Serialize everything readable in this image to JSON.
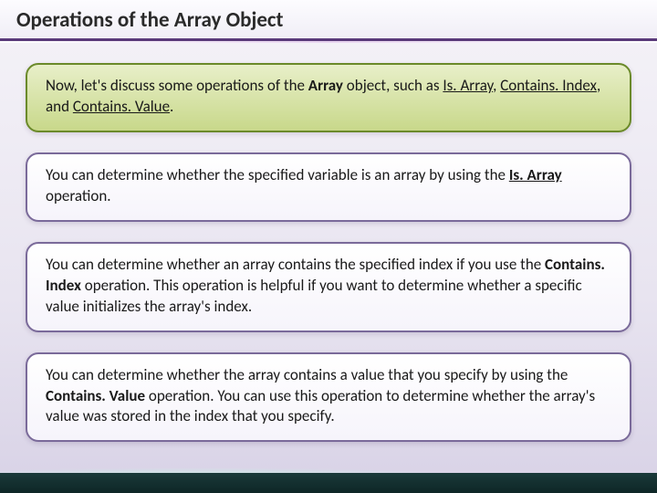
{
  "title": "Operations of the Array Object",
  "intro": {
    "prefix": "Now, let's discuss some operations of the ",
    "objName": "Array",
    "mid": " object, such as ",
    "op1": "Is. Array",
    "sep1": ", ",
    "op2": "Contains. Index",
    "sep2": ", and ",
    "op3": "Contains. Value",
    "suffix": "."
  },
  "para1": {
    "t1": "You can determine whether the specified variable is an array by using the ",
    "op": "Is. Array",
    "t2": " operation."
  },
  "para2": {
    "t1": "You can determine whether an array contains the specified index if you use the ",
    "op": "Contains. Index",
    "t2": " operation. This operation is helpful if you want to determine whether a specific value initializes the array's index."
  },
  "para3": {
    "t1": "You can determine whether the array contains a value that you specify by using the ",
    "op": "Contains. Value",
    "t2": " operation. You can use this operation to determine whether the array's value was stored in the index that you specify."
  },
  "colors": {
    "titleBorder": "#5a3a7a",
    "greenBorder": "#6b8a2a",
    "whiteBorder": "#7a6a9a",
    "footerDark": "#0e2626"
  }
}
